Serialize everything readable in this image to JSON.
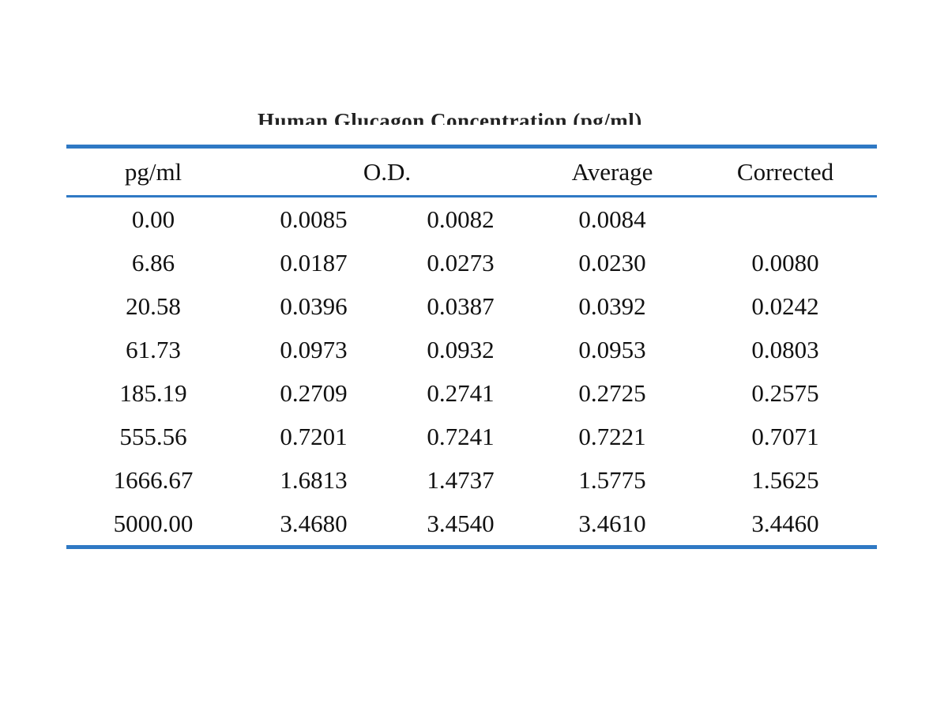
{
  "title": "Human Glucagon Concentration (pg/ml)",
  "table": {
    "headers": [
      "pg/ml",
      "O.D.",
      "Average",
      "Corrected"
    ],
    "rows": [
      [
        "0.00",
        "0.0085",
        "0.0082",
        "0.0084",
        ""
      ],
      [
        "6.86",
        "0.0187",
        "0.0273",
        "0.0230",
        "0.0080"
      ],
      [
        "20.58",
        "0.0396",
        "0.0387",
        "0.0392",
        "0.0242"
      ],
      [
        "61.73",
        "0.0973",
        "0.0932",
        "0.0953",
        "0.0803"
      ],
      [
        "185.19",
        "0.2709",
        "0.2741",
        "0.2725",
        "0.2575"
      ],
      [
        "555.56",
        "0.7201",
        "0.7241",
        "0.7221",
        "0.7071"
      ],
      [
        "1666.67",
        "1.6813",
        "1.4737",
        "1.5775",
        "1.5625"
      ],
      [
        "5000.00",
        "3.4680",
        "3.4540",
        "3.4610",
        "3.4460"
      ]
    ]
  },
  "colors": {
    "rule": "#2f79c4",
    "text": "#111111"
  }
}
